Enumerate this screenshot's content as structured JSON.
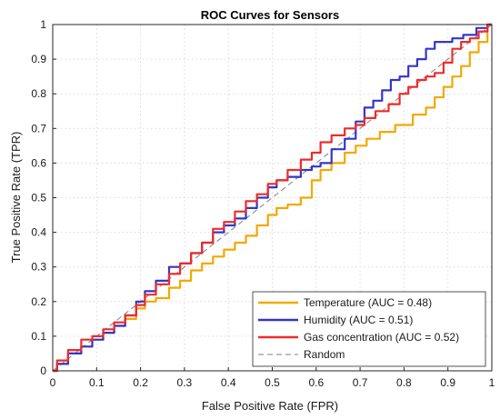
{
  "chart_data": {
    "type": "line",
    "title": "ROC Curves for Sensors",
    "xlabel": "False Positive Rate (FPR)",
    "ylabel": "True Positive Rate (TPR)",
    "xlim": [
      0,
      1
    ],
    "ylim": [
      0,
      1
    ],
    "xticks": [
      "0",
      "0.1",
      "0.2",
      "0.3",
      "0.4",
      "0.5",
      "0.6",
      "0.7",
      "0.8",
      "0.9",
      "1"
    ],
    "yticks": [
      "0",
      "0.1",
      "0.2",
      "0.3",
      "0.4",
      "0.5",
      "0.6",
      "0.7",
      "0.8",
      "0.9",
      "1"
    ],
    "grid": true,
    "legend_position": "bottom-right",
    "series": [
      {
        "name": "Temperature (AUC = 0.48)",
        "color": "#f2a900",
        "points": [
          [
            0,
            0
          ],
          [
            0.02,
            0.02
          ],
          [
            0.05,
            0.05
          ],
          [
            0.08,
            0.07
          ],
          [
            0.1,
            0.09
          ],
          [
            0.13,
            0.11
          ],
          [
            0.15,
            0.13
          ],
          [
            0.18,
            0.15
          ],
          [
            0.2,
            0.18
          ],
          [
            0.22,
            0.2
          ],
          [
            0.25,
            0.21
          ],
          [
            0.28,
            0.24
          ],
          [
            0.3,
            0.26
          ],
          [
            0.33,
            0.29
          ],
          [
            0.35,
            0.31
          ],
          [
            0.38,
            0.33
          ],
          [
            0.4,
            0.35
          ],
          [
            0.43,
            0.37
          ],
          [
            0.45,
            0.39
          ],
          [
            0.48,
            0.42
          ],
          [
            0.5,
            0.45
          ],
          [
            0.52,
            0.47
          ],
          [
            0.55,
            0.48
          ],
          [
            0.58,
            0.5
          ],
          [
            0.6,
            0.55
          ],
          [
            0.62,
            0.58
          ],
          [
            0.65,
            0.6
          ],
          [
            0.68,
            0.63
          ],
          [
            0.7,
            0.65
          ],
          [
            0.73,
            0.67
          ],
          [
            0.76,
            0.69
          ],
          [
            0.8,
            0.71
          ],
          [
            0.84,
            0.74
          ],
          [
            0.86,
            0.76
          ],
          [
            0.88,
            0.79
          ],
          [
            0.9,
            0.82
          ],
          [
            0.92,
            0.85
          ],
          [
            0.94,
            0.88
          ],
          [
            0.96,
            0.92
          ],
          [
            0.98,
            0.95
          ],
          [
            1,
            1
          ]
        ]
      },
      {
        "name": "Humidity (AUC = 0.51)",
        "color": "#3535c8",
        "points": [
          [
            0,
            0
          ],
          [
            0.02,
            0.02
          ],
          [
            0.05,
            0.05
          ],
          [
            0.08,
            0.07
          ],
          [
            0.1,
            0.09
          ],
          [
            0.13,
            0.11
          ],
          [
            0.15,
            0.13
          ],
          [
            0.18,
            0.16
          ],
          [
            0.2,
            0.2
          ],
          [
            0.22,
            0.23
          ],
          [
            0.25,
            0.26
          ],
          [
            0.28,
            0.3
          ],
          [
            0.3,
            0.31
          ],
          [
            0.33,
            0.34
          ],
          [
            0.35,
            0.37
          ],
          [
            0.38,
            0.4
          ],
          [
            0.4,
            0.42
          ],
          [
            0.43,
            0.44
          ],
          [
            0.45,
            0.47
          ],
          [
            0.48,
            0.5
          ],
          [
            0.5,
            0.53
          ],
          [
            0.52,
            0.55
          ],
          [
            0.55,
            0.56
          ],
          [
            0.58,
            0.58
          ],
          [
            0.6,
            0.59
          ],
          [
            0.62,
            0.6
          ],
          [
            0.65,
            0.64
          ],
          [
            0.68,
            0.67
          ],
          [
            0.7,
            0.72
          ],
          [
            0.72,
            0.76
          ],
          [
            0.74,
            0.78
          ],
          [
            0.76,
            0.81
          ],
          [
            0.78,
            0.84
          ],
          [
            0.8,
            0.85
          ],
          [
            0.82,
            0.88
          ],
          [
            0.84,
            0.9
          ],
          [
            0.86,
            0.93
          ],
          [
            0.88,
            0.95
          ],
          [
            0.9,
            0.95
          ],
          [
            0.92,
            0.96
          ],
          [
            0.95,
            0.97
          ],
          [
            0.98,
            0.99
          ],
          [
            1,
            1
          ]
        ]
      },
      {
        "name": "Gas concentration (AUC = 0.52)",
        "color": "#ee2b2b",
        "points": [
          [
            0,
            0
          ],
          [
            0.02,
            0.03
          ],
          [
            0.05,
            0.06
          ],
          [
            0.08,
            0.09
          ],
          [
            0.1,
            0.1
          ],
          [
            0.13,
            0.12
          ],
          [
            0.15,
            0.14
          ],
          [
            0.18,
            0.16
          ],
          [
            0.2,
            0.19
          ],
          [
            0.22,
            0.22
          ],
          [
            0.25,
            0.25
          ],
          [
            0.28,
            0.28
          ],
          [
            0.3,
            0.31
          ],
          [
            0.33,
            0.34
          ],
          [
            0.35,
            0.37
          ],
          [
            0.38,
            0.41
          ],
          [
            0.4,
            0.43
          ],
          [
            0.43,
            0.46
          ],
          [
            0.45,
            0.49
          ],
          [
            0.48,
            0.51
          ],
          [
            0.5,
            0.54
          ],
          [
            0.52,
            0.55
          ],
          [
            0.55,
            0.58
          ],
          [
            0.58,
            0.61
          ],
          [
            0.6,
            0.63
          ],
          [
            0.62,
            0.66
          ],
          [
            0.65,
            0.68
          ],
          [
            0.68,
            0.7
          ],
          [
            0.7,
            0.71
          ],
          [
            0.72,
            0.73
          ],
          [
            0.75,
            0.75
          ],
          [
            0.78,
            0.77
          ],
          [
            0.8,
            0.8
          ],
          [
            0.82,
            0.82
          ],
          [
            0.84,
            0.84
          ],
          [
            0.86,
            0.85
          ],
          [
            0.88,
            0.86
          ],
          [
            0.9,
            0.89
          ],
          [
            0.92,
            0.93
          ],
          [
            0.94,
            0.95
          ],
          [
            0.96,
            0.96
          ],
          [
            0.98,
            0.98
          ],
          [
            1,
            1
          ]
        ]
      },
      {
        "name": "Random",
        "color": "#7f7f7f",
        "dashed": true,
        "points": [
          [
            0,
            0
          ],
          [
            1,
            1
          ]
        ]
      }
    ]
  }
}
